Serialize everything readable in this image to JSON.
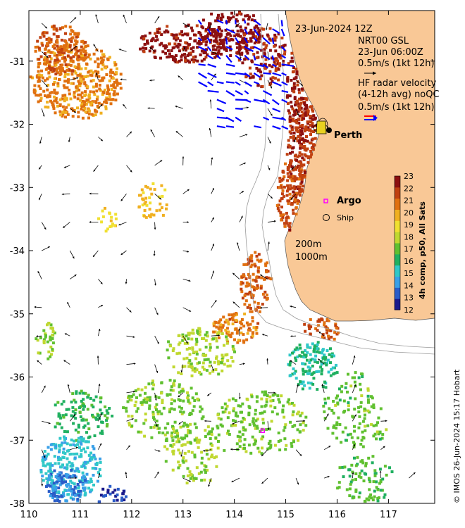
{
  "map": {
    "lon_range": [
      110,
      117.9
    ],
    "lat_range": [
      -38,
      -30.2
    ],
    "lon_ticks": [
      "110",
      "111",
      "112",
      "113",
      "114",
      "115",
      "116",
      "117"
    ],
    "lat_ticks": [
      "-31",
      "-32",
      "-33",
      "-34",
      "-35",
      "-36",
      "-37",
      "-38"
    ],
    "colors": {
      "land": "#f9c896",
      "ocean": "#ffffff",
      "gsl_vectors": "#000000",
      "radar_vectors": "#0000ff",
      "radar_vectors_alt": "#ff0000",
      "isobath": "#9a9a9a",
      "argo": "#ff00ff"
    }
  },
  "legend": {
    "timestamp": "23-Jun-2024 12Z",
    "gsl_title": "NRT00 GSL",
    "gsl_time": "23-Jun 06:00Z",
    "gsl_scale": "0.5m/s (1kt 12h)",
    "radar_line1": "HF radar velocity",
    "radar_line2": "(4-12h avg) noQC",
    "radar_scale": "0.5m/s (1kt 12h)",
    "argo_label": "Argo",
    "ship_label": "Ship",
    "perth_label": "Perth",
    "isobath_200": "200m",
    "isobath_1000": "1000m"
  },
  "colorbar": {
    "title": "4h comp, p50, All Sats",
    "ticks": [
      "23",
      "22",
      "21",
      "20",
      "19",
      "18",
      "17",
      "16",
      "15",
      "14",
      "13",
      "12"
    ],
    "min": 12,
    "max": 23,
    "stops": [
      "#1a1a8c",
      "#2a5cc8",
      "#3aa0e8",
      "#30c8c8",
      "#20b060",
      "#60c030",
      "#c0d830",
      "#f0e030",
      "#f0b020",
      "#e07010",
      "#c04010",
      "#8c1010"
    ]
  },
  "credit": "© IMOS 26-Jun-2024 15:17 Hobart",
  "argo_float": {
    "lon": 114.55,
    "lat": -36.85
  }
}
